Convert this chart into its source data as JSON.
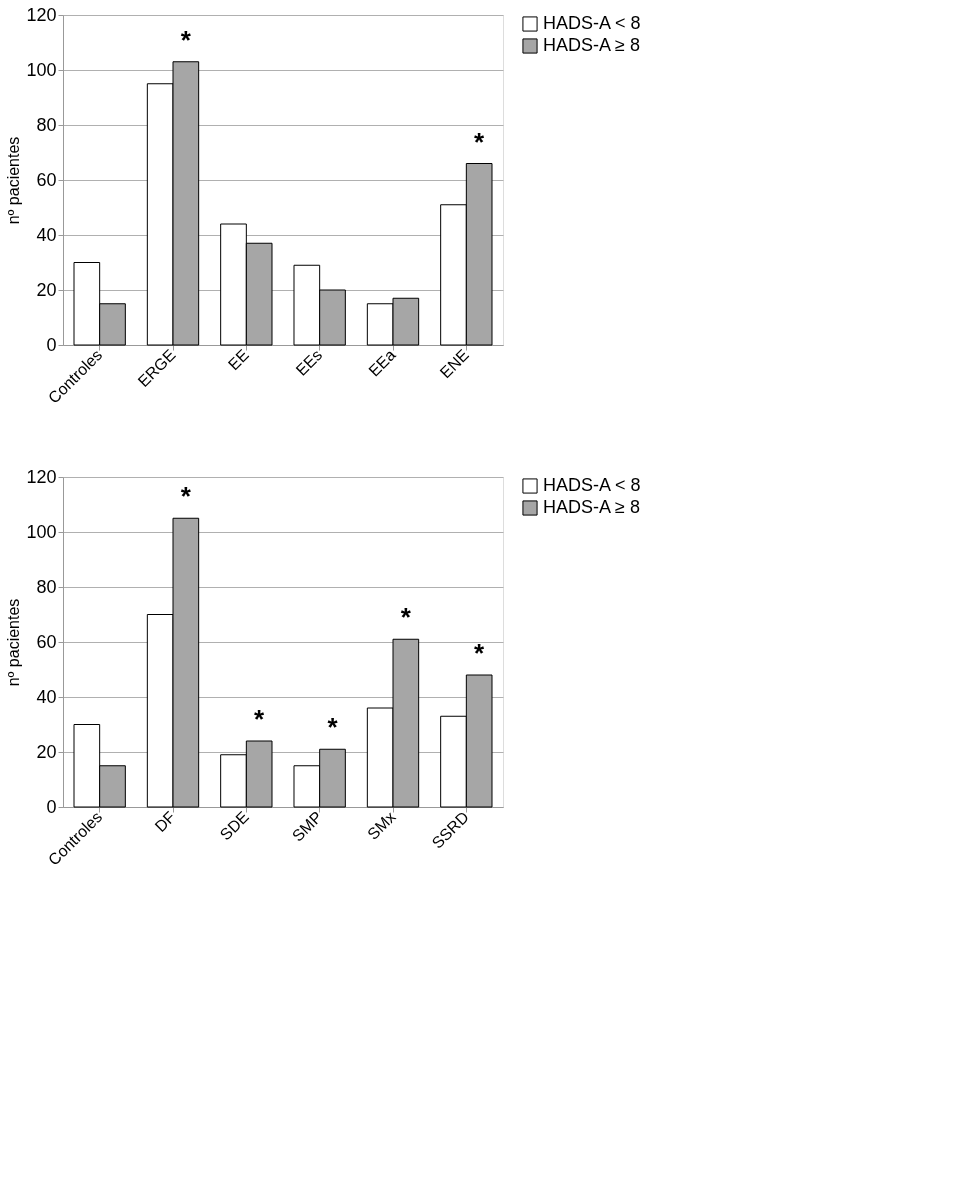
{
  "chart_data": [
    {
      "type": "bar",
      "ylabel": "nº pacientes",
      "categories": [
        "Controles",
        "ERGE",
        "EE",
        "EEs",
        "EEa",
        "ENE"
      ],
      "series": [
        {
          "name": "HADS-A < 8",
          "color": "#ffffff",
          "values": [
            30,
            95,
            44,
            29,
            15,
            51
          ]
        },
        {
          "name": "HADS-A ≥ 8",
          "color": "#a6a6a6",
          "values": [
            15,
            103,
            37,
            20,
            17,
            66
          ]
        }
      ],
      "ylim": [
        0,
        120
      ],
      "yticks": [
        0,
        20,
        40,
        60,
        80,
        100,
        120
      ],
      "grid": "y",
      "legend": "right",
      "annotations": [
        {
          "text": "*",
          "x": "ERGE",
          "y": 103
        },
        {
          "text": "*",
          "x": "ENE",
          "y": 66
        }
      ]
    },
    {
      "type": "bar",
      "ylabel": "nº pacientes",
      "categories": [
        "Controles",
        "DF",
        "SDE",
        "SMP",
        "SMx",
        "SSRD"
      ],
      "series": [
        {
          "name": "HADS-A < 8",
          "color": "#ffffff",
          "values": [
            30,
            70,
            19,
            15,
            36,
            33
          ]
        },
        {
          "name": "HADS-A ≥ 8",
          "color": "#a6a6a6",
          "values": [
            15,
            105,
            24,
            21,
            61,
            48
          ]
        }
      ],
      "ylim": [
        0,
        120
      ],
      "yticks": [
        0,
        20,
        40,
        60,
        80,
        100,
        120
      ],
      "grid": "y",
      "legend": "right",
      "annotations": [
        {
          "text": "*",
          "x": "DF",
          "y": 105
        },
        {
          "text": "*",
          "x": "SDE",
          "y": 24
        },
        {
          "text": "*",
          "x": "SMP",
          "y": 21
        },
        {
          "text": "*",
          "x": "SMx",
          "y": 61
        },
        {
          "text": "*",
          "x": "SSRD",
          "y": 48
        }
      ]
    }
  ]
}
